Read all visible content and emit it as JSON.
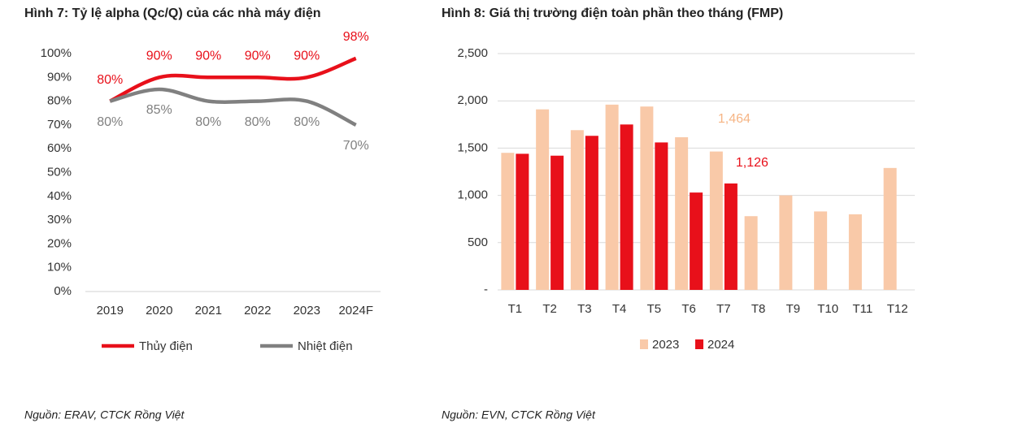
{
  "chart_data": [
    {
      "type": "line",
      "title": "Hình 7: Tỷ lệ alpha (Qc/Q) của các nhà máy điện",
      "categories": [
        "2019",
        "2020",
        "2021",
        "2022",
        "2023",
        "2024F"
      ],
      "series": [
        {
          "name": "Thủy điện",
          "color": "#e8101a",
          "values": [
            80,
            90,
            90,
            90,
            90,
            98
          ],
          "value_labels": [
            "80%",
            "90%",
            "90%",
            "90%",
            "90%",
            "98%"
          ]
        },
        {
          "name": "Nhiệt điện",
          "color": "#808080",
          "values": [
            80,
            85,
            80,
            80,
            80,
            70
          ],
          "value_labels": [
            "80%",
            "85%",
            "80%",
            "80%",
            "80%",
            "70%"
          ]
        }
      ],
      "ylim": [
        0,
        100
      ],
      "yticks": [
        {
          "value": 0,
          "label": "0%"
        },
        {
          "value": 10,
          "label": "10%"
        },
        {
          "value": 20,
          "label": "20%"
        },
        {
          "value": 30,
          "label": "30%"
        },
        {
          "value": 40,
          "label": "40%"
        },
        {
          "value": 50,
          "label": "50%"
        },
        {
          "value": 60,
          "label": "60%"
        },
        {
          "value": 70,
          "label": "70%"
        },
        {
          "value": 80,
          "label": "80%"
        },
        {
          "value": 90,
          "label": "90%"
        },
        {
          "value": 100,
          "label": "100%"
        }
      ],
      "grid": false,
      "legend": "bottom",
      "source": "Nguồn: ERAV, CTCK Rồng Việt"
    },
    {
      "type": "bar",
      "title": "Hình 8: Giá thị trường điện toàn phần theo tháng (FMP)",
      "categories": [
        "T1",
        "T2",
        "T3",
        "T4",
        "T5",
        "T6",
        "T7",
        "T8",
        "T9",
        "T10",
        "T11",
        "T12"
      ],
      "series": [
        {
          "name": "2023",
          "color": "#f9c9a8",
          "values": [
            1450,
            1910,
            1690,
            1960,
            1940,
            1615,
            1464,
            780,
            1000,
            830,
            800,
            1290
          ],
          "value_labels": [
            null,
            null,
            null,
            null,
            null,
            null,
            "1,464",
            null,
            null,
            null,
            null,
            null
          ]
        },
        {
          "name": "2024",
          "color": "#e8101a",
          "values": [
            1440,
            1420,
            1630,
            1750,
            1560,
            1030,
            1126,
            null,
            null,
            null,
            null,
            null
          ],
          "value_labels": [
            null,
            null,
            null,
            null,
            null,
            null,
            "1,126",
            null,
            null,
            null,
            null,
            null
          ]
        }
      ],
      "ylim": [
        0,
        2500
      ],
      "yticks": [
        {
          "value": 0,
          "label": "-"
        },
        500,
        {
          "value": 1000,
          "label": "1,000"
        },
        {
          "value": 1500,
          "label": "1,500"
        },
        {
          "value": 2000,
          "label": "2,000"
        },
        {
          "value": 2500,
          "label": "2,500"
        }
      ],
      "grid": true,
      "legend": "bottom",
      "source": "Nguồn: EVN, CTCK Rồng Việt"
    }
  ]
}
